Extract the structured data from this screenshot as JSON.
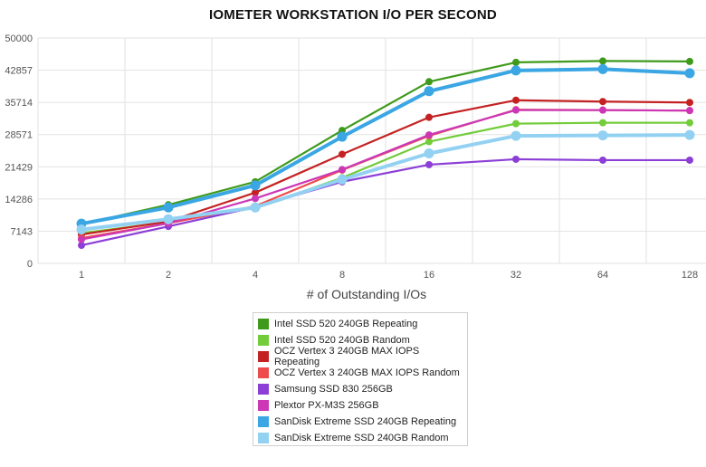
{
  "chart_data": {
    "type": "line",
    "title": "IOMETER WORKSTATION I/O PER SECOND",
    "xlabel": "# of Outstanding I/Os",
    "ylabel": "",
    "x": [
      "1",
      "2",
      "4",
      "8",
      "16",
      "32",
      "64",
      "128"
    ],
    "ylim": [
      0,
      50000
    ],
    "yticks": [
      "0",
      "7143",
      "14286",
      "21429",
      "28571",
      "35714",
      "42857",
      "50000"
    ],
    "grid": true,
    "legend_position": "bottom",
    "series": [
      {
        "name": "Intel SSD 520 240GB Repeating",
        "color": "#3f9a1b",
        "values": [
          8700,
          13000,
          18100,
          29500,
          40300,
          44600,
          44900,
          44800
        ]
      },
      {
        "name": "Intel SSD 520 240GB Random",
        "color": "#73cc3a",
        "values": [
          6700,
          9200,
          12300,
          19000,
          27000,
          31000,
          31200,
          31200
        ]
      },
      {
        "name": "OCZ Vertex 3 240GB MAX IOPS Repeating",
        "color": "#c42222",
        "values": [
          6400,
          9300,
          15700,
          24200,
          32400,
          36200,
          35900,
          35700
        ]
      },
      {
        "name": "OCZ Vertex 3 240GB MAX IOPS Random",
        "color": "#ee4b4b",
        "values": [
          5600,
          8900,
          12700,
          20700,
          28300,
          34100,
          34000,
          33900
        ]
      },
      {
        "name": "Samsung SSD 830 256GB",
        "color": "#8b3fd6",
        "values": [
          4000,
          8200,
          12500,
          18100,
          21900,
          23100,
          22900,
          22900
        ]
      },
      {
        "name": "Plextor PX-M3S 256GB",
        "color": "#cc37b6",
        "values": [
          5300,
          8900,
          14400,
          20800,
          28500,
          34000,
          34000,
          33900
        ]
      },
      {
        "name": "SanDisk Extreme SSD 240GB Repeating",
        "color": "#3aa6e3",
        "values": [
          8800,
          12400,
          17300,
          28100,
          38200,
          42800,
          43100,
          42200
        ]
      },
      {
        "name": "SanDisk Extreme SSD 240GB Random",
        "color": "#93d1f2",
        "values": [
          7500,
          9800,
          12400,
          18600,
          24400,
          28300,
          28400,
          28500
        ]
      }
    ]
  }
}
